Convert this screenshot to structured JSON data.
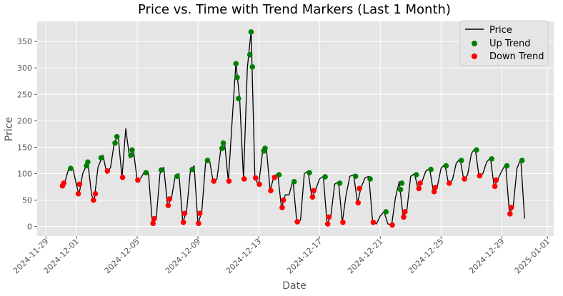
{
  "chart_data": {
    "type": "line+scatter",
    "title": "Price vs. Time with Trend Markers (Last 1 Month)",
    "xlabel": "Date",
    "ylabel": "Price",
    "xlim": [
      "2024-11-28T10:00",
      "2025-01-01T10:00"
    ],
    "ylim": [
      -18,
      388
    ],
    "yticks": [
      0,
      50,
      100,
      150,
      200,
      250,
      300,
      350
    ],
    "xticks": [
      "2024-11-29",
      "2024-12-01",
      "2024-12-05",
      "2024-12-09",
      "2024-12-13",
      "2024-12-17",
      "2024-12-21",
      "2024-12-25",
      "2024-12-29",
      "2025-01-01"
    ],
    "grid": true,
    "legend_position": "top-right",
    "legend": [
      {
        "label": "Price",
        "kind": "line",
        "color": "#000000"
      },
      {
        "label": "Up Trend",
        "kind": "marker",
        "color": "#008000"
      },
      {
        "label": "Down Trend",
        "kind": "marker",
        "color": "#ff0000"
      }
    ],
    "colors": {
      "background": "#e5e5e5",
      "grid": "#ffffff",
      "line": "#000000",
      "up": "#008000",
      "down": "#ff0000"
    },
    "series": [
      {
        "name": "Price",
        "kind": "line",
        "points": [
          [
            "2024-11-30T00:00",
            75
          ],
          [
            "2024-11-30T06:00",
            85
          ],
          [
            "2024-11-30T12:00",
            110
          ],
          [
            "2024-11-30T18:00",
            112
          ],
          [
            "2024-12-01T00:00",
            80
          ],
          [
            "2024-12-01T04:00",
            60
          ],
          [
            "2024-12-01T10:00",
            100
          ],
          [
            "2024-12-01T18:00",
            122
          ],
          [
            "2024-12-02T00:00",
            60
          ],
          [
            "2024-12-02T04:00",
            48
          ],
          [
            "2024-12-02T10:00",
            112
          ],
          [
            "2024-12-02T18:00",
            135
          ],
          [
            "2024-12-03T00:00",
            100
          ],
          [
            "2024-12-03T06:00",
            112
          ],
          [
            "2024-12-03T12:00",
            160
          ],
          [
            "2024-12-03T18:00",
            172
          ],
          [
            "2024-12-04T00:00",
            92
          ],
          [
            "2024-12-04T06:00",
            185
          ],
          [
            "2024-12-04T12:00",
            130
          ],
          [
            "2024-12-04T18:00",
            145
          ],
          [
            "2024-12-05T00:00",
            88
          ],
          [
            "2024-12-05T06:00",
            92
          ],
          [
            "2024-12-05T12:00",
            105
          ],
          [
            "2024-12-05T18:00",
            100
          ],
          [
            "2024-12-06T00:00",
            5
          ],
          [
            "2024-12-06T06:00",
            14
          ],
          [
            "2024-12-06T12:00",
            100
          ],
          [
            "2024-12-06T18:00",
            112
          ],
          [
            "2024-12-07T00:00",
            40
          ],
          [
            "2024-12-07T06:00",
            52
          ],
          [
            "2024-12-07T12:00",
            95
          ],
          [
            "2024-12-07T18:00",
            100
          ],
          [
            "2024-12-08T00:00",
            8
          ],
          [
            "2024-12-08T06:00",
            28
          ],
          [
            "2024-12-08T12:00",
            105
          ],
          [
            "2024-12-08T18:00",
            115
          ],
          [
            "2024-12-09T00:00",
            5
          ],
          [
            "2024-12-09T06:00",
            28
          ],
          [
            "2024-12-09T12:00",
            120
          ],
          [
            "2024-12-09T18:00",
            128
          ],
          [
            "2024-12-10T00:00",
            85
          ],
          [
            "2024-12-10T06:00",
            90
          ],
          [
            "2024-12-10T12:00",
            145
          ],
          [
            "2024-12-10T18:00",
            160
          ],
          [
            "2024-12-11T00:00",
            85
          ],
          [
            "2024-12-11T06:00",
            200
          ],
          [
            "2024-12-11T12:00",
            310
          ],
          [
            "2024-12-11T18:00",
            240
          ],
          [
            "2024-12-12T00:00",
            90
          ],
          [
            "2024-12-12T06:00",
            300
          ],
          [
            "2024-12-12T12:00",
            370
          ],
          [
            "2024-12-12T18:00",
            90
          ],
          [
            "2024-12-13T00:00",
            80
          ],
          [
            "2024-12-13T06:00",
            140
          ],
          [
            "2024-12-13T12:00",
            150
          ],
          [
            "2024-12-13T18:00",
            68
          ],
          [
            "2024-12-14T00:00",
            95
          ],
          [
            "2024-12-14T06:00",
            100
          ],
          [
            "2024-12-14T12:00",
            35
          ],
          [
            "2024-12-14T18:00",
            60
          ],
          [
            "2024-12-15T00:00",
            60
          ],
          [
            "2024-12-15T06:00",
            88
          ],
          [
            "2024-12-15T12:00",
            10
          ],
          [
            "2024-12-15T18:00",
            12
          ],
          [
            "2024-12-16T00:00",
            100
          ],
          [
            "2024-12-16T06:00",
            105
          ],
          [
            "2024-12-16T12:00",
            55
          ],
          [
            "2024-12-16T18:00",
            70
          ],
          [
            "2024-12-17T00:00",
            90
          ],
          [
            "2024-12-17T06:00",
            95
          ],
          [
            "2024-12-17T12:00",
            5
          ],
          [
            "2024-12-17T18:00",
            20
          ],
          [
            "2024-12-18T00:00",
            80
          ],
          [
            "2024-12-18T06:00",
            85
          ],
          [
            "2024-12-18T12:00",
            8
          ],
          [
            "2024-12-18T18:00",
            60
          ],
          [
            "2024-12-19T00:00",
            95
          ],
          [
            "2024-12-19T06:00",
            98
          ],
          [
            "2024-12-19T12:00",
            45
          ],
          [
            "2024-12-19T18:00",
            75
          ],
          [
            "2024-12-20T00:00",
            92
          ],
          [
            "2024-12-20T06:00",
            95
          ],
          [
            "2024-12-20T12:00",
            8
          ],
          [
            "2024-12-20T18:00",
            5
          ],
          [
            "2024-12-21T00:00",
            20
          ],
          [
            "2024-12-21T06:00",
            28
          ],
          [
            "2024-12-21T12:00",
            5
          ],
          [
            "2024-12-21T18:00",
            3
          ],
          [
            "2024-12-22T00:00",
            55
          ],
          [
            "2024-12-22T06:00",
            85
          ],
          [
            "2024-12-22T12:00",
            20
          ],
          [
            "2024-12-22T18:00",
            30
          ],
          [
            "2024-12-23T00:00",
            95
          ],
          [
            "2024-12-23T06:00",
            100
          ],
          [
            "2024-12-23T12:00",
            70
          ],
          [
            "2024-12-23T18:00",
            85
          ],
          [
            "2024-12-24T00:00",
            105
          ],
          [
            "2024-12-24T06:00",
            110
          ],
          [
            "2024-12-24T12:00",
            65
          ],
          [
            "2024-12-24T18:00",
            75
          ],
          [
            "2024-12-25T00:00",
            110
          ],
          [
            "2024-12-25T06:00",
            118
          ],
          [
            "2024-12-25T12:00",
            80
          ],
          [
            "2024-12-25T18:00",
            88
          ],
          [
            "2024-12-26T00:00",
            120
          ],
          [
            "2024-12-26T06:00",
            128
          ],
          [
            "2024-12-26T12:00",
            88
          ],
          [
            "2024-12-26T18:00",
            98
          ],
          [
            "2024-12-27T00:00",
            138
          ],
          [
            "2024-12-27T06:00",
            148
          ],
          [
            "2024-12-27T12:00",
            95
          ],
          [
            "2024-12-27T18:00",
            100
          ],
          [
            "2024-12-28T00:00",
            122
          ],
          [
            "2024-12-28T06:00",
            130
          ],
          [
            "2024-12-28T12:00",
            75
          ],
          [
            "2024-12-28T18:00",
            90
          ],
          [
            "2024-12-29T00:00",
            105
          ],
          [
            "2024-12-29T06:00",
            118
          ],
          [
            "2024-12-29T12:00",
            25
          ],
          [
            "2024-12-29T18:00",
            38
          ],
          [
            "2024-12-30T00:00",
            110
          ],
          [
            "2024-12-30T06:00",
            128
          ],
          [
            "2024-12-30T12:00",
            15
          ]
        ]
      },
      {
        "name": "Up Trend",
        "kind": "scatter",
        "points": [
          [
            "2024-11-30T15:00",
            110
          ],
          [
            "2024-12-01T16:00",
            115
          ],
          [
            "2024-12-01T18:00",
            122
          ],
          [
            "2024-12-02T15:00",
            130
          ],
          [
            "2024-12-03T13:00",
            158
          ],
          [
            "2024-12-03T16:00",
            170
          ],
          [
            "2024-12-04T14:00",
            135
          ],
          [
            "2024-12-04T16:00",
            145
          ],
          [
            "2024-12-05T14:00",
            102
          ],
          [
            "2024-12-06T14:00",
            107
          ],
          [
            "2024-12-07T15:00",
            95
          ],
          [
            "2024-12-08T15:00",
            108
          ],
          [
            "2024-12-09T15:00",
            125
          ],
          [
            "2024-12-10T14:00",
            148
          ],
          [
            "2024-12-10T16:00",
            158
          ],
          [
            "2024-12-11T14:00",
            282
          ],
          [
            "2024-12-11T12:00",
            308
          ],
          [
            "2024-12-11T16:00",
            242
          ],
          [
            "2024-12-12T10:00",
            325
          ],
          [
            "2024-12-12T12:00",
            368
          ],
          [
            "2024-12-12T14:00",
            302
          ],
          [
            "2024-12-13T08:00",
            143
          ],
          [
            "2024-12-13T10:00",
            148
          ],
          [
            "2024-12-14T08:00",
            98
          ],
          [
            "2024-12-15T08:00",
            85
          ],
          [
            "2024-12-16T08:00",
            102
          ],
          [
            "2024-12-17T09:00",
            94
          ],
          [
            "2024-12-18T08:00",
            82
          ],
          [
            "2024-12-19T09:00",
            95
          ],
          [
            "2024-12-20T08:00",
            90
          ],
          [
            "2024-12-21T09:00",
            28
          ],
          [
            "2024-12-22T08:00",
            70
          ],
          [
            "2024-12-22T10:00",
            82
          ],
          [
            "2024-12-23T09:00",
            98
          ],
          [
            "2024-12-24T08:00",
            108
          ],
          [
            "2024-12-25T08:00",
            115
          ],
          [
            "2024-12-26T08:00",
            125
          ],
          [
            "2024-12-27T08:00",
            145
          ],
          [
            "2024-12-28T08:00",
            128
          ],
          [
            "2024-12-29T08:00",
            115
          ],
          [
            "2024-12-30T08:00",
            125
          ]
        ]
      },
      {
        "name": "Down Trend",
        "kind": "scatter",
        "points": [
          [
            "2024-11-30T02:00",
            77
          ],
          [
            "2024-11-30T04:00",
            82
          ],
          [
            "2024-12-01T03:00",
            62
          ],
          [
            "2024-12-01T05:00",
            80
          ],
          [
            "2024-12-02T03:00",
            50
          ],
          [
            "2024-12-02T06:00",
            62
          ],
          [
            "2024-12-03T01:00",
            105
          ],
          [
            "2024-12-04T01:00",
            93
          ],
          [
            "2024-12-05T01:00",
            88
          ],
          [
            "2024-12-06T01:00",
            6
          ],
          [
            "2024-12-06T03:00",
            15
          ],
          [
            "2024-12-07T01:00",
            40
          ],
          [
            "2024-12-07T03:00",
            52
          ],
          [
            "2024-12-08T01:00",
            8
          ],
          [
            "2024-12-08T03:00",
            25
          ],
          [
            "2024-12-09T01:00",
            6
          ],
          [
            "2024-12-09T03:00",
            25
          ],
          [
            "2024-12-10T01:00",
            86
          ],
          [
            "2024-12-11T01:00",
            86
          ],
          [
            "2024-12-12T01:00",
            90
          ],
          [
            "2024-12-12T19:00",
            92
          ],
          [
            "2024-12-13T01:00",
            80
          ],
          [
            "2024-12-13T19:00",
            68
          ],
          [
            "2024-12-14T01:00",
            93
          ],
          [
            "2024-12-14T13:00",
            36
          ],
          [
            "2024-12-14T15:00",
            50
          ],
          [
            "2024-12-15T13:00",
            9
          ],
          [
            "2024-12-16T13:00",
            56
          ],
          [
            "2024-12-16T15:00",
            68
          ],
          [
            "2024-12-17T13:00",
            5
          ],
          [
            "2024-12-17T15:00",
            18
          ],
          [
            "2024-12-18T13:00",
            8
          ],
          [
            "2024-12-19T13:00",
            45
          ],
          [
            "2024-12-19T15:00",
            72
          ],
          [
            "2024-12-20T13:00",
            8
          ],
          [
            "2024-12-21T19:00",
            3
          ],
          [
            "2024-12-22T13:00",
            18
          ],
          [
            "2024-12-22T15:00",
            28
          ],
          [
            "2024-12-23T13:00",
            72
          ],
          [
            "2024-12-23T15:00",
            82
          ],
          [
            "2024-12-24T13:00",
            66
          ],
          [
            "2024-12-24T15:00",
            74
          ],
          [
            "2024-12-25T13:00",
            82
          ],
          [
            "2024-12-26T13:00",
            90
          ],
          [
            "2024-12-27T13:00",
            96
          ],
          [
            "2024-12-28T13:00",
            76
          ],
          [
            "2024-12-28T15:00",
            88
          ],
          [
            "2024-12-29T13:00",
            24
          ],
          [
            "2024-12-29T15:00",
            36
          ]
        ]
      }
    ]
  }
}
